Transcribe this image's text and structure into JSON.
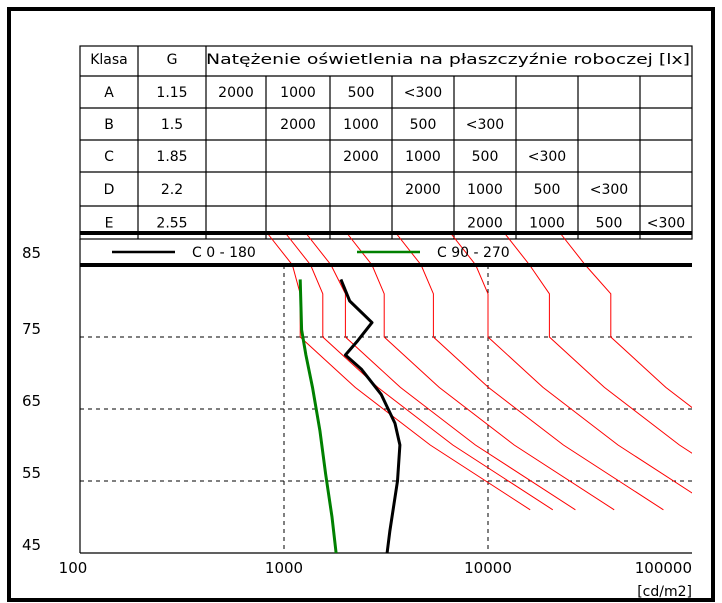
{
  "table": {
    "headers": [
      "Klasa",
      "G",
      "Natężenie oświetlenia na płaszczyźnie roboczej [lx]"
    ],
    "rows": [
      {
        "klasa": "A",
        "g": "1.15",
        "cells": [
          "2000",
          "1000",
          "500",
          "<300",
          "",
          "",
          "",
          "",
          ""
        ]
      },
      {
        "klasa": "B",
        "g": "1.5",
        "cells": [
          "",
          "2000",
          "1000",
          "500",
          "<300",
          "",
          "",
          "",
          ""
        ]
      },
      {
        "klasa": "C",
        "g": "1.85",
        "cells": [
          "",
          "",
          "2000",
          "1000",
          "500",
          "<300",
          "",
          "",
          ""
        ]
      },
      {
        "klasa": "D",
        "g": "2.2",
        "cells": [
          "",
          "",
          "",
          "2000",
          "1000",
          "500",
          "<300",
          "",
          ""
        ]
      },
      {
        "klasa": "E",
        "g": "2.55",
        "cells": [
          "",
          "",
          "",
          "",
          "2000",
          "1000",
          "500",
          "<300",
          ""
        ]
      }
    ]
  },
  "chart_data": {
    "type": "line",
    "xscale": "log",
    "xlim": [
      100,
      100000
    ],
    "ylim": [
      45,
      85
    ],
    "xticks": [
      "100",
      "1000",
      "10000",
      "100000"
    ],
    "yticks": [
      "85",
      "75",
      "65",
      "55",
      "45"
    ],
    "xunit": "[cd/m2]",
    "legend": [
      "C 0 - 180",
      "C 90 - 270"
    ],
    "colors": {
      "c0_180": "#000000",
      "c90_270": "#008000",
      "limit": "#ff0000",
      "grid": "#000000"
    },
    "series": [
      {
        "name": "C 0 - 180",
        "color": "#000000",
        "points": [
          [
            3200,
            45
          ],
          [
            3300,
            48
          ],
          [
            3600,
            55
          ],
          [
            3700,
            60
          ],
          [
            3500,
            63
          ],
          [
            3000,
            67
          ],
          [
            2400,
            70.5
          ],
          [
            2000,
            72.5
          ],
          [
            2300,
            74.5
          ],
          [
            2700,
            77
          ],
          [
            2100,
            80
          ],
          [
            1900,
            83
          ]
        ]
      },
      {
        "name": "C 90 - 270",
        "color": "#008000",
        "points": [
          [
            1800,
            45
          ],
          [
            1720,
            50
          ],
          [
            1600,
            56
          ],
          [
            1500,
            62
          ],
          [
            1380,
            68
          ],
          [
            1280,
            72.5
          ],
          [
            1220,
            76
          ],
          [
            1200,
            83
          ]
        ]
      }
    ],
    "limit_curves": [
      {
        "vertical_x": 1200,
        "top_x": 1100
      },
      {
        "vertical_x": 1550,
        "top_x": 1350
      },
      {
        "vertical_x": 2000,
        "top_x": 1700
      },
      {
        "vertical_x": 3100,
        "top_x": 2700
      },
      {
        "vertical_x": 5400,
        "top_x": 4700
      },
      {
        "vertical_x": 10000,
        "top_x": 8700
      },
      {
        "vertical_x": 20000,
        "top_x": 16000
      },
      {
        "vertical_x": 40000,
        "top_x": 30000
      }
    ]
  }
}
